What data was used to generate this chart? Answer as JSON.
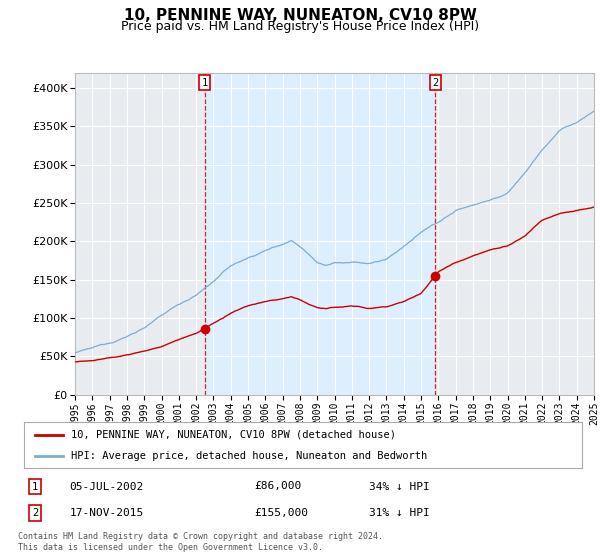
{
  "title": "10, PENNINE WAY, NUNEATON, CV10 8PW",
  "subtitle": "Price paid vs. HM Land Registry's House Price Index (HPI)",
  "title_fontsize": 11,
  "subtitle_fontsize": 9,
  "ylim": [
    0,
    420000
  ],
  "yticks": [
    0,
    50000,
    100000,
    150000,
    200000,
    250000,
    300000,
    350000,
    400000
  ],
  "bg_color": "#e8ecf0",
  "shaded_bg_color": "#ddeeff",
  "plot_bg_color": "#e8ecf0",
  "grid_color": "#ffffff",
  "hpi_color": "#7dadd4",
  "price_color": "#cc0000",
  "marker1_price": 86000,
  "marker1_label": "05-JUL-2002",
  "marker2_price": 155000,
  "marker2_label": "17-NOV-2015",
  "legend_label1": "10, PENNINE WAY, NUNEATON, CV10 8PW (detached house)",
  "legend_label2": "HPI: Average price, detached house, Nuneaton and Bedworth",
  "footer1": "Contains HM Land Registry data © Crown copyright and database right 2024.",
  "footer2": "This data is licensed under the Open Government Licence v3.0.",
  "xticklabels": [
    "1995",
    "1996",
    "1997",
    "1998",
    "1999",
    "2000",
    "2001",
    "2002",
    "2003",
    "2004",
    "2005",
    "2006",
    "2007",
    "2008",
    "2009",
    "2010",
    "2011",
    "2012",
    "2013",
    "2014",
    "2015",
    "2016",
    "2017",
    "2018",
    "2019",
    "2020",
    "2021",
    "2022",
    "2023",
    "2024",
    "2025"
  ]
}
